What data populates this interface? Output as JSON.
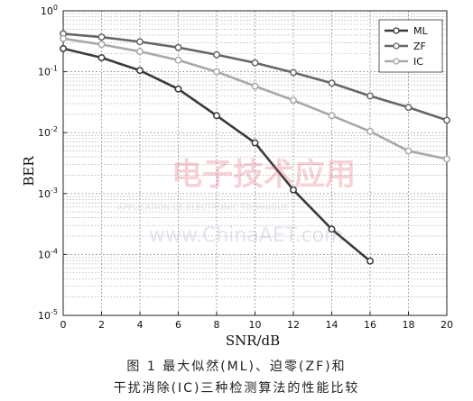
{
  "chart_data": {
    "type": "line",
    "xlabel": "SNR/dB",
    "ylabel": "BER",
    "x_ticks": [
      "0",
      "2",
      "4",
      "6",
      "8",
      "10",
      "12",
      "14",
      "16",
      "18",
      "20"
    ],
    "y_tick_exponents": [
      0,
      -1,
      -2,
      -3,
      -4,
      -5
    ],
    "xlim": [
      0,
      20
    ],
    "ylim": [
      1e-05,
      1
    ],
    "y_scale": "log",
    "grid": true,
    "legend_position": "top-right",
    "series": [
      {
        "name": "ML",
        "color": "#3a3a3a",
        "x": [
          0,
          2,
          4,
          6,
          8,
          10,
          12,
          14,
          16
        ],
        "values": [
          0.24,
          0.17,
          0.105,
          0.052,
          0.019,
          0.0068,
          0.00115,
          0.00026,
          7.8e-05
        ]
      },
      {
        "name": "ZF",
        "color": "#666666",
        "x": [
          0,
          2,
          4,
          6,
          8,
          10,
          12,
          14,
          16,
          18,
          20
        ],
        "values": [
          0.42,
          0.37,
          0.31,
          0.25,
          0.19,
          0.14,
          0.097,
          0.065,
          0.04,
          0.026,
          0.016
        ]
      },
      {
        "name": "IC",
        "color": "#a8a8a8",
        "x": [
          0,
          2,
          4,
          6,
          8,
          10,
          12,
          14,
          16,
          18,
          20
        ],
        "values": [
          0.35,
          0.28,
          0.215,
          0.155,
          0.1,
          0.058,
          0.034,
          0.019,
          0.0105,
          0.005,
          0.0037
        ]
      }
    ]
  },
  "watermark": {
    "text_cn": "电子技术应用",
    "text_en": "APPLICATION OF ELECTRONIC TECHNIQUE",
    "url": "www.ChinaAET.com"
  },
  "caption": {
    "line1": "图 1  最大似然(ML)、迫零(ZF)和",
    "line2": "干扰消除(IC)三种检测算法的性能比较"
  }
}
